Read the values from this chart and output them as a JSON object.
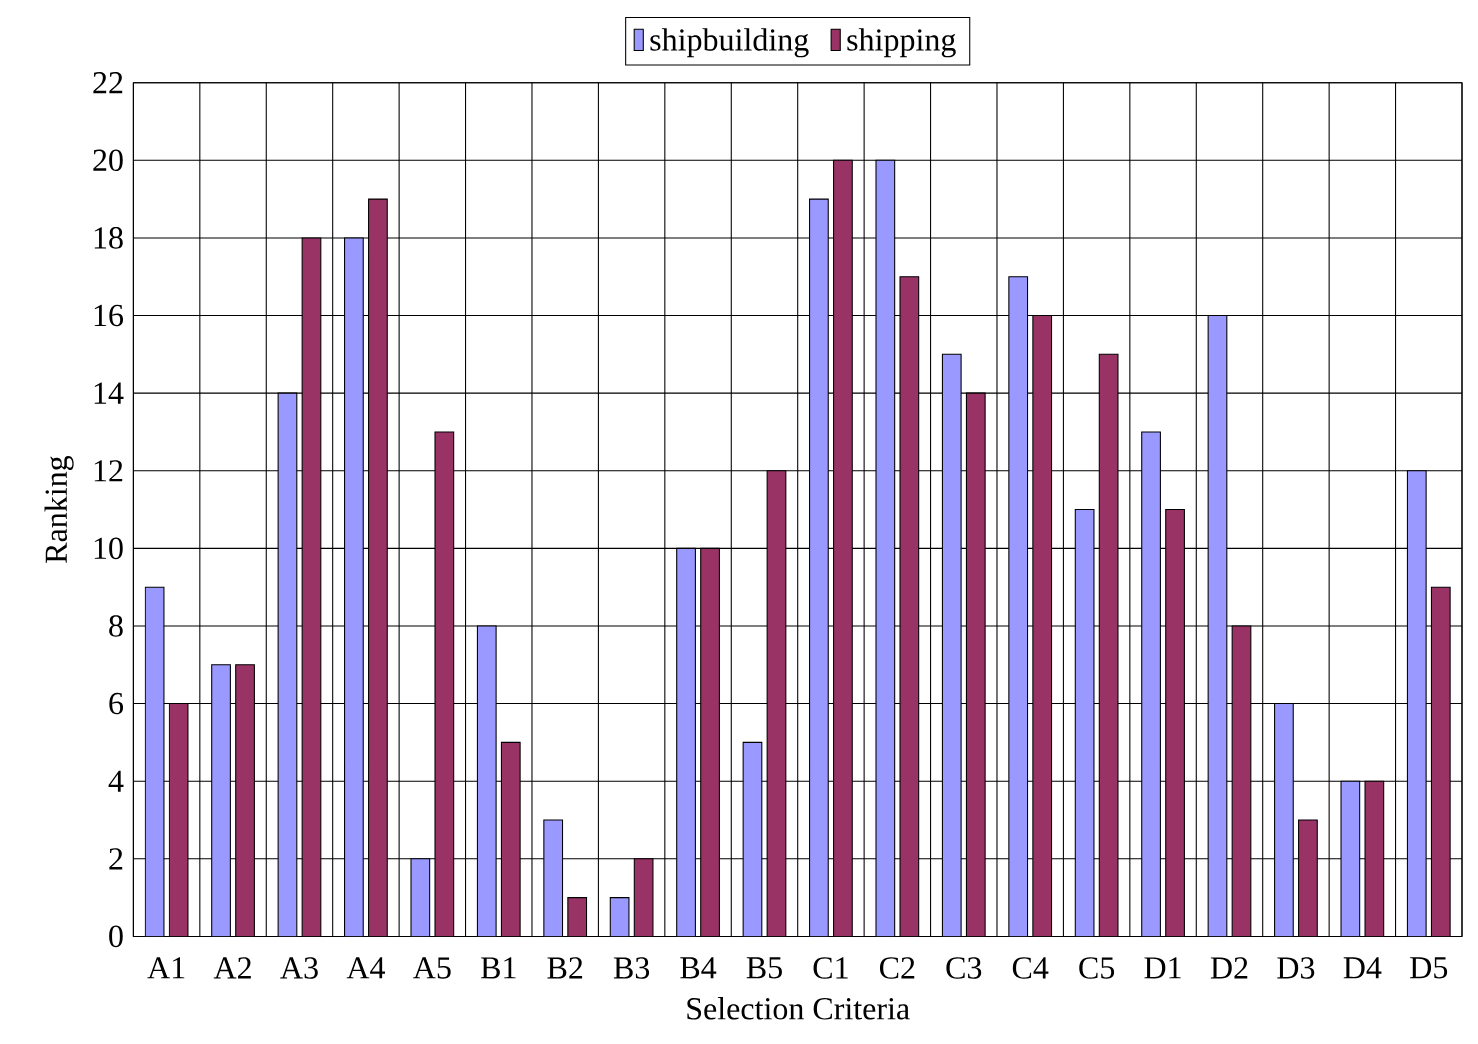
{
  "chart_data": {
    "type": "bar",
    "xlabel": "Selection Criteria",
    "ylabel": "Ranking",
    "categories": [
      "A1",
      "A2",
      "A3",
      "A4",
      "A5",
      "B1",
      "B2",
      "B3",
      "B4",
      "B5",
      "C1",
      "C2",
      "C3",
      "C4",
      "C5",
      "D1",
      "D2",
      "D3",
      "D4",
      "D5"
    ],
    "series": [
      {
        "name": "shipbuilding",
        "color": "#9999ff",
        "values": [
          9,
          7,
          14,
          18,
          2,
          8,
          3,
          1,
          10,
          5,
          19,
          20,
          15,
          17,
          11,
          13,
          16,
          6,
          4,
          12
        ]
      },
      {
        "name": "shipping",
        "color": "#993366",
        "values": [
          6,
          7,
          18,
          19,
          13,
          5,
          1,
          2,
          10,
          12,
          20,
          17,
          14,
          16,
          15,
          11,
          8,
          3,
          4,
          9
        ]
      }
    ],
    "ylim": [
      0,
      22
    ],
    "yticks": [
      0,
      2,
      4,
      6,
      8,
      10,
      12,
      14,
      16,
      18,
      20,
      22
    ],
    "grid": true,
    "legend": "top"
  }
}
